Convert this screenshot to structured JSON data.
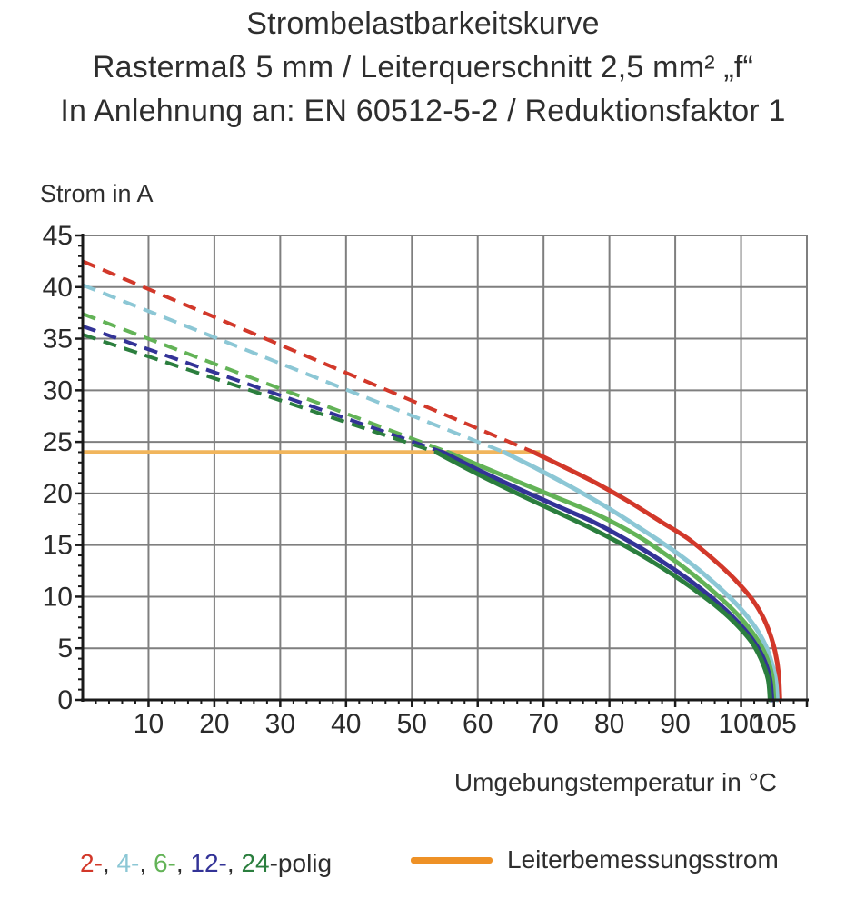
{
  "title": {
    "line1": "Strombelastbarkeitskurve",
    "line2": "Rastermaß 5 mm / Leiterquerschnitt 2,5 mm² „f“",
    "line3": "In Anlehnung an: EN 60512-5-2 / Reduktionsfaktor 1"
  },
  "legend": {
    "rated_label": "Leiterbemessungsstrom",
    "rated_swatch_color": "#EE9126",
    "pole_segments": [
      {
        "text": "2-",
        "color": "#D2382A"
      },
      {
        "text": ", ",
        "color": "#2d2d2d"
      },
      {
        "text": "4-",
        "color": "#8CC7D5"
      },
      {
        "text": ", ",
        "color": "#2d2d2d"
      },
      {
        "text": "6-",
        "color": "#63B357"
      },
      {
        "text": ", ",
        "color": "#2d2d2d"
      },
      {
        "text": "12-",
        "color": "#333397"
      },
      {
        "text": ", ",
        "color": "#2d2d2d"
      },
      {
        "text": "24",
        "color": "#2B7E3E"
      },
      {
        "text": "-polig",
        "color": "#2d2d2d"
      }
    ]
  },
  "chart_data": {
    "type": "line",
    "title": "Strombelastbarkeitskurve",
    "xlabel": "Umgebungstemperatur in °C",
    "ylabel": "Strom in A",
    "xlim": [
      0,
      110
    ],
    "ylim": [
      0,
      45
    ],
    "x_ticks": [
      10,
      20,
      30,
      40,
      50,
      60,
      70,
      80,
      90,
      100,
      105
    ],
    "y_ticks": [
      0,
      5,
      10,
      15,
      20,
      25,
      30,
      35,
      40,
      45
    ],
    "x_gridline_step": 10,
    "y_gridline_step": 5,
    "x_minor_tick_step": 2,
    "y_minor_tick_step": 1,
    "grid": true,
    "grid_color": "#7f7f7f",
    "axis_color": "#1a1a1a",
    "tick_label_color": "#2a2a2a",
    "rated_current": {
      "label": "Leiterbemessungsstrom",
      "value_a": 24,
      "x_start_c": 0,
      "x_end_c": 69.5,
      "line_color": "#F1B55C"
    },
    "series": [
      {
        "name": "2-polig",
        "color": "#D2382A",
        "dash_start_a": 42.5,
        "meets_rated_at_c": 68.5,
        "solid_points": [
          [
            68.5,
            24
          ],
          [
            73,
            22.6
          ],
          [
            78,
            21.0
          ],
          [
            83,
            19.2
          ],
          [
            88,
            17.2
          ],
          [
            92,
            15.6
          ],
          [
            96,
            13.5
          ],
          [
            99,
            11.7
          ],
          [
            101.5,
            9.9
          ],
          [
            103.2,
            8.2
          ],
          [
            104.4,
            6.4
          ],
          [
            105.2,
            4.6
          ],
          [
            105.7,
            2.6
          ],
          [
            105.9,
            0
          ]
        ]
      },
      {
        "name": "4-polig",
        "color": "#8CC7D5",
        "dash_start_a": 40.2,
        "meets_rated_at_c": 64.0,
        "solid_points": [
          [
            64,
            24
          ],
          [
            69,
            22.4
          ],
          [
            74,
            20.7
          ],
          [
            79,
            18.9
          ],
          [
            84,
            16.9
          ],
          [
            89,
            14.8
          ],
          [
            93,
            12.9
          ],
          [
            97,
            10.7
          ],
          [
            100,
            8.8
          ],
          [
            102.2,
            7.0
          ],
          [
            103.7,
            5.3
          ],
          [
            104.7,
            3.5
          ],
          [
            105.3,
            1.8
          ],
          [
            105.5,
            0
          ]
        ]
      },
      {
        "name": "6-polig",
        "color": "#63B357",
        "dash_start_a": 37.4,
        "meets_rated_at_c": 55.5,
        "solid_points": [
          [
            55.5,
            24
          ],
          [
            61,
            22.5
          ],
          [
            67,
            20.9
          ],
          [
            72,
            19.6
          ],
          [
            78,
            18.0
          ],
          [
            84,
            16.0
          ],
          [
            89,
            13.9
          ],
          [
            93,
            12.0
          ],
          [
            97,
            9.8
          ],
          [
            100,
            7.9
          ],
          [
            102.2,
            6.1
          ],
          [
            103.7,
            4.4
          ],
          [
            104.7,
            2.4
          ],
          [
            105.0,
            0
          ]
        ]
      },
      {
        "name": "12-polig",
        "color": "#333397",
        "dash_start_a": 36.2,
        "meets_rated_at_c": 54.7,
        "solid_points": [
          [
            54.7,
            24
          ],
          [
            60,
            22.3
          ],
          [
            66,
            20.5
          ],
          [
            72,
            18.8
          ],
          [
            78,
            17.1
          ],
          [
            84,
            15.0
          ],
          [
            89,
            13.0
          ],
          [
            93,
            11.2
          ],
          [
            97,
            9.1
          ],
          [
            100,
            7.2
          ],
          [
            102,
            5.6
          ],
          [
            103.5,
            3.9
          ],
          [
            104.4,
            2.0
          ],
          [
            104.7,
            0
          ]
        ]
      },
      {
        "name": "24-polig",
        "color": "#2B7E3E",
        "dash_start_a": 35.4,
        "meets_rated_at_c": 53.7,
        "solid_points": [
          [
            53.7,
            24
          ],
          [
            59,
            22.2
          ],
          [
            65,
            20.3
          ],
          [
            71,
            18.5
          ],
          [
            77,
            16.7
          ],
          [
            83,
            14.7
          ],
          [
            88,
            12.8
          ],
          [
            92,
            11.1
          ],
          [
            96,
            9.2
          ],
          [
            99,
            7.5
          ],
          [
            101.5,
            5.7
          ],
          [
            103,
            4.0
          ],
          [
            104.1,
            2.0
          ],
          [
            104.4,
            0
          ]
        ]
      }
    ]
  }
}
